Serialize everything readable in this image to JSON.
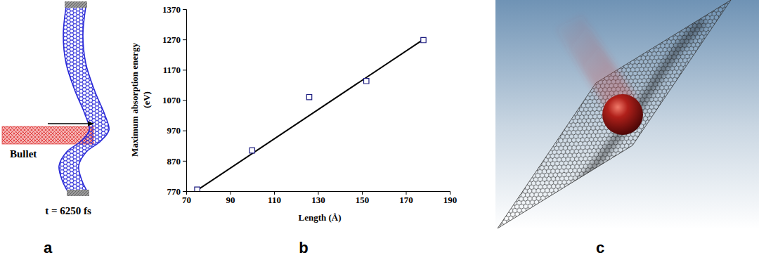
{
  "panels": [
    "a",
    "b",
    "c"
  ],
  "panel_a": {
    "projectile": "Bullet",
    "time": "t = 6250 fs"
  },
  "chart_data": {
    "type": "scatter",
    "xlabel": "Length (Å)",
    "ylabel": [
      "Maximum absorption energy",
      "(eV)"
    ],
    "xlim": [
      70,
      190
    ],
    "xticks": [
      70,
      90,
      110,
      130,
      150,
      170,
      190
    ],
    "ylim": [
      770,
      1370
    ],
    "yticks": [
      770,
      870,
      970,
      1070,
      1170,
      1270,
      1370
    ],
    "series": [
      {
        "type": "scatter",
        "marker": "square",
        "color": "#1c1c80",
        "x": [
          75,
          100,
          126,
          152,
          178
        ],
        "values": [
          775,
          904,
          1080,
          1133,
          1268
        ]
      },
      {
        "type": "line",
        "line_style": "solid",
        "color": "#000000",
        "x": [
          75,
          178
        ],
        "values": [
          773,
          1270
        ]
      }
    ]
  }
}
